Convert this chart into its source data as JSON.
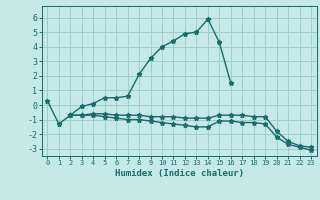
{
  "xlabel": "Humidex (Indice chaleur)",
  "xlim": [
    -0.5,
    23.5
  ],
  "ylim": [
    -3.5,
    6.8
  ],
  "yticks": [
    -3,
    -2,
    -1,
    0,
    1,
    2,
    3,
    4,
    5,
    6
  ],
  "xticks": [
    0,
    1,
    2,
    3,
    4,
    5,
    6,
    7,
    8,
    9,
    10,
    11,
    12,
    13,
    14,
    15,
    16,
    17,
    18,
    19,
    20,
    21,
    22,
    23
  ],
  "background_color": "#c5e8e8",
  "grid_color": "#9fcece",
  "line_color": "#1a6b6b",
  "lines": [
    {
      "x": [
        0,
        1,
        2,
        3,
        4,
        5,
        6,
        7,
        8,
        9,
        10,
        11,
        12,
        13,
        14,
        15,
        16
      ],
      "y": [
        0.3,
        -1.3,
        -0.7,
        -0.1,
        0.1,
        0.5,
        0.5,
        0.6,
        2.1,
        3.2,
        4.0,
        4.4,
        4.9,
        5.0,
        5.9,
        4.3,
        1.5
      ]
    },
    {
      "x": [
        2,
        3,
        4,
        5,
        6,
        7,
        8,
        9,
        10,
        11,
        12,
        13,
        14,
        15,
        16,
        17,
        18,
        19,
        20,
        21,
        22,
        23
      ],
      "y": [
        -0.7,
        -0.7,
        -0.6,
        -0.6,
        -0.7,
        -0.7,
        -0.7,
        -0.8,
        -0.8,
        -0.8,
        -0.9,
        -0.9,
        -0.9,
        -0.7,
        -0.7,
        -0.7,
        -0.8,
        -0.8,
        -1.8,
        -2.5,
        -2.8,
        -2.9
      ]
    },
    {
      "x": [
        2,
        3,
        4,
        5,
        6,
        7,
        8,
        9,
        10,
        11,
        12,
        13,
        14,
        15,
        16,
        17,
        18,
        19,
        20,
        21,
        22,
        23
      ],
      "y": [
        -0.7,
        -0.7,
        -0.7,
        -0.8,
        -0.9,
        -1.0,
        -1.0,
        -1.1,
        -1.2,
        -1.3,
        -1.4,
        -1.5,
        -1.5,
        -1.1,
        -1.1,
        -1.2,
        -1.2,
        -1.3,
        -2.2,
        -2.7,
        -2.9,
        -3.1
      ]
    }
  ]
}
